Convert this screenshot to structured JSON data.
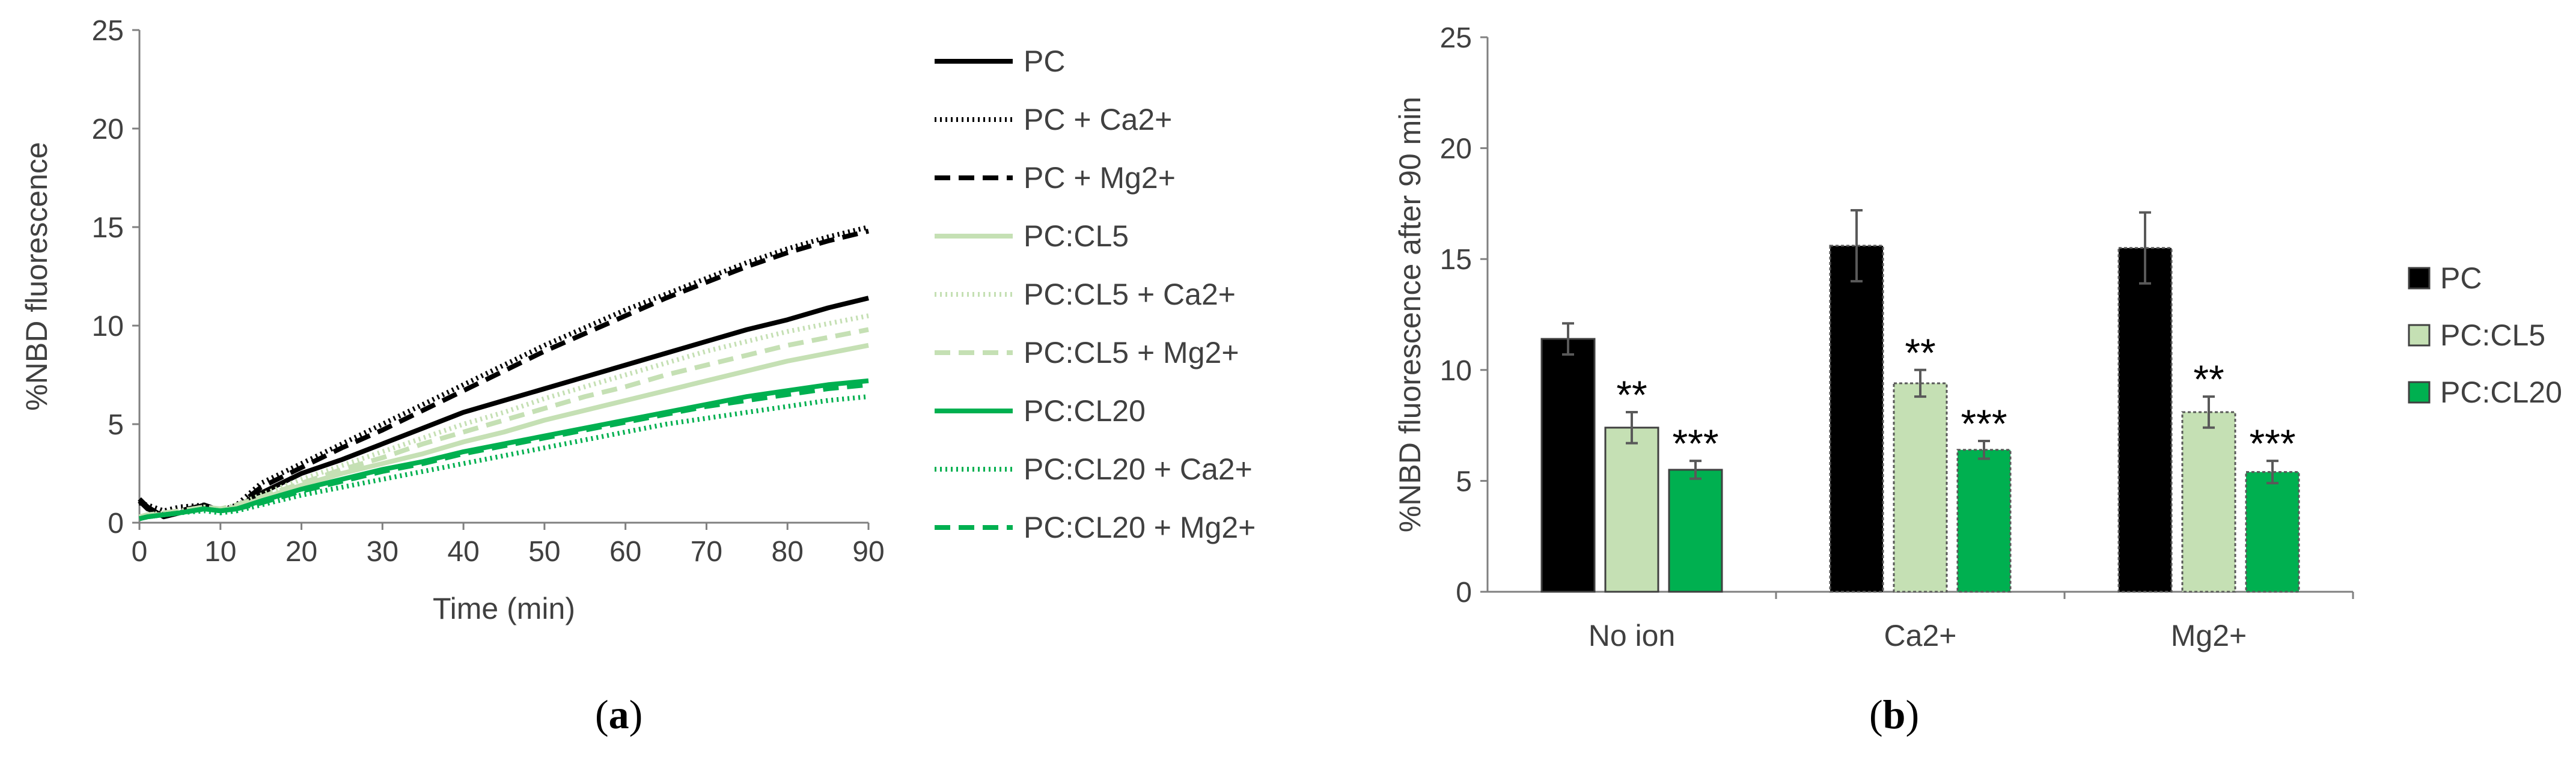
{
  "panel_labels": {
    "a": "a",
    "b": "b",
    "open": "(",
    "close": ")"
  },
  "chart_data": [
    {
      "type": "line",
      "panel": "a",
      "title": "",
      "xlabel": "Time (min)",
      "ylabel": "%NBD fluorescence",
      "xlim": [
        0,
        90
      ],
      "ylim": [
        0,
        25
      ],
      "xticks": [
        0,
        10,
        20,
        30,
        40,
        50,
        60,
        70,
        80,
        90
      ],
      "yticks": [
        0,
        5,
        10,
        15,
        20,
        25
      ],
      "grid": false,
      "legend_position": "right",
      "series": [
        {
          "name": "PC",
          "color": "#000000",
          "dash": "solid",
          "x": [
            0,
            1,
            3,
            5,
            8,
            10,
            12,
            15,
            20,
            25,
            30,
            35,
            40,
            45,
            50,
            55,
            60,
            65,
            70,
            75,
            80,
            85,
            90
          ],
          "y": [
            1.2,
            0.8,
            0.3,
            0.5,
            0.9,
            0.6,
            0.8,
            1.5,
            2.5,
            3.2,
            4.0,
            4.8,
            5.6,
            6.2,
            6.8,
            7.4,
            8.0,
            8.6,
            9.2,
            9.8,
            10.3,
            10.9,
            11.4
          ]
        },
        {
          "name": "PC + Ca2+",
          "color": "#000000",
          "dash": "dot",
          "x": [
            0,
            1,
            3,
            5,
            8,
            10,
            12,
            15,
            20,
            25,
            30,
            35,
            40,
            45,
            50,
            55,
            60,
            65,
            70,
            75,
            80,
            85,
            90
          ],
          "y": [
            1.0,
            0.9,
            0.6,
            0.8,
            0.9,
            0.6,
            0.9,
            2.0,
            3.0,
            4.0,
            5.0,
            6.0,
            7.0,
            8.0,
            9.0,
            9.9,
            10.8,
            11.6,
            12.4,
            13.2,
            13.9,
            14.5,
            15.0
          ]
        },
        {
          "name": "PC + Mg2+",
          "color": "#000000",
          "dash": "dash",
          "x": [
            0,
            1,
            3,
            5,
            8,
            10,
            12,
            15,
            20,
            25,
            30,
            35,
            40,
            45,
            50,
            55,
            60,
            65,
            70,
            75,
            80,
            85,
            90
          ],
          "y": [
            1.1,
            0.7,
            0.4,
            0.6,
            0.9,
            0.6,
            0.8,
            1.8,
            2.8,
            3.8,
            4.7,
            5.7,
            6.7,
            7.7,
            8.7,
            9.6,
            10.5,
            11.4,
            12.2,
            13.0,
            13.7,
            14.3,
            14.8
          ]
        },
        {
          "name": "PC:CL5",
          "color": "#c5e0b4",
          "dash": "solid",
          "x": [
            0,
            1,
            3,
            5,
            8,
            10,
            12,
            15,
            20,
            25,
            30,
            35,
            40,
            45,
            50,
            55,
            60,
            65,
            70,
            75,
            80,
            85,
            90
          ],
          "y": [
            0.3,
            0.4,
            0.4,
            0.5,
            0.7,
            0.6,
            0.8,
            1.2,
            1.9,
            2.5,
            3.0,
            3.5,
            4.1,
            4.6,
            5.2,
            5.7,
            6.2,
            6.7,
            7.2,
            7.7,
            8.2,
            8.6,
            9.0
          ]
        },
        {
          "name": "PC:CL5 + Ca2+",
          "color": "#c5e0b4",
          "dash": "dot",
          "x": [
            0,
            1,
            3,
            5,
            8,
            10,
            12,
            15,
            20,
            25,
            30,
            35,
            40,
            45,
            50,
            55,
            60,
            65,
            70,
            75,
            80,
            85,
            90
          ],
          "y": [
            0.3,
            0.4,
            0.5,
            0.6,
            0.8,
            0.7,
            0.9,
            1.4,
            2.2,
            2.9,
            3.6,
            4.3,
            5.0,
            5.6,
            6.3,
            6.9,
            7.5,
            8.1,
            8.7,
            9.2,
            9.7,
            10.1,
            10.5
          ]
        },
        {
          "name": "PC:CL5 + Mg2+",
          "color": "#c5e0b4",
          "dash": "dash",
          "x": [
            0,
            1,
            3,
            5,
            8,
            10,
            12,
            15,
            20,
            25,
            30,
            35,
            40,
            45,
            50,
            55,
            60,
            65,
            70,
            75,
            80,
            85,
            90
          ],
          "y": [
            0.3,
            0.4,
            0.5,
            0.6,
            0.8,
            0.7,
            0.9,
            1.3,
            2.0,
            2.7,
            3.3,
            4.0,
            4.6,
            5.2,
            5.8,
            6.4,
            6.9,
            7.5,
            8.0,
            8.5,
            9.0,
            9.4,
            9.8
          ]
        },
        {
          "name": "PC:CL20",
          "color": "#00b050",
          "dash": "solid",
          "x": [
            0,
            1,
            3,
            5,
            8,
            10,
            12,
            15,
            20,
            25,
            30,
            35,
            40,
            45,
            50,
            55,
            60,
            65,
            70,
            75,
            80,
            85,
            90
          ],
          "y": [
            0.2,
            0.3,
            0.4,
            0.5,
            0.7,
            0.6,
            0.7,
            1.1,
            1.7,
            2.2,
            2.7,
            3.1,
            3.6,
            4.0,
            4.4,
            4.8,
            5.2,
            5.6,
            6.0,
            6.4,
            6.7,
            7.0,
            7.2
          ]
        },
        {
          "name": "PC:CL20 + Ca2+",
          "color": "#00b050",
          "dash": "dot",
          "x": [
            0,
            1,
            3,
            5,
            8,
            10,
            12,
            15,
            20,
            25,
            30,
            35,
            40,
            45,
            50,
            55,
            60,
            65,
            70,
            75,
            80,
            85,
            90
          ],
          "y": [
            0.2,
            0.3,
            0.4,
            0.5,
            0.6,
            0.5,
            0.6,
            0.9,
            1.4,
            1.8,
            2.2,
            2.6,
            3.0,
            3.4,
            3.8,
            4.2,
            4.6,
            5.0,
            5.3,
            5.6,
            5.9,
            6.2,
            6.4
          ]
        },
        {
          "name": "PC:CL20 + Mg2+",
          "color": "#00b050",
          "dash": "dash",
          "x": [
            0,
            1,
            3,
            5,
            8,
            10,
            12,
            15,
            20,
            25,
            30,
            35,
            40,
            45,
            50,
            55,
            60,
            65,
            70,
            75,
            80,
            85,
            90
          ],
          "y": [
            0.2,
            0.3,
            0.4,
            0.5,
            0.7,
            0.6,
            0.7,
            1.0,
            1.6,
            2.1,
            2.6,
            3.0,
            3.5,
            3.9,
            4.3,
            4.7,
            5.1,
            5.5,
            5.9,
            6.2,
            6.5,
            6.8,
            7.0
          ]
        }
      ]
    },
    {
      "type": "bar",
      "panel": "b",
      "title": "",
      "xlabel": "",
      "ylabel": "%NBD fluorescence after 90 min",
      "ylim": [
        0,
        25
      ],
      "yticks": [
        0,
        5,
        10,
        15,
        20,
        25
      ],
      "grid": false,
      "legend_position": "right",
      "categories": [
        "No ion",
        "Ca2+",
        "Mg2+"
      ],
      "series": [
        {
          "name": "PC",
          "color": "#000000",
          "values": [
            11.4,
            15.6,
            15.5
          ],
          "errors": [
            0.7,
            1.6,
            1.6
          ],
          "significance": [
            "",
            "",
            ""
          ]
        },
        {
          "name": "PC:CL5",
          "color": "#c5e0b4",
          "values": [
            7.4,
            9.4,
            8.1
          ],
          "errors": [
            0.7,
            0.6,
            0.7
          ],
          "significance": [
            "**",
            "**",
            "**"
          ]
        },
        {
          "name": "PC:CL20",
          "color": "#00b050",
          "values": [
            5.5,
            6.4,
            5.4
          ],
          "errors": [
            0.4,
            0.4,
            0.5
          ],
          "significance": [
            "***",
            "***",
            "***"
          ]
        }
      ]
    }
  ]
}
